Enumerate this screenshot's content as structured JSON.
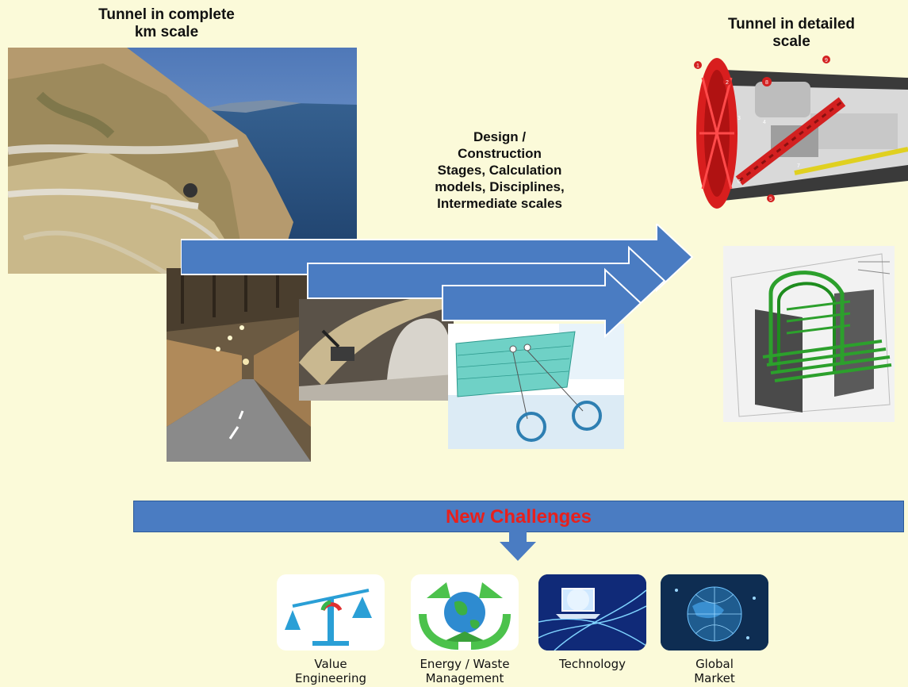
{
  "left_title": "Tunnel in complete\nkm scale",
  "right_title": "Tunnel in detailed\nscale",
  "center_text": "Design /\nConstruction\nStages, Calculation\nmodels, Disciplines,\nIntermediate scales",
  "banner_text": "New Challenges",
  "callout_numbers": [
    "1",
    "2",
    "3",
    "4",
    "5",
    "6",
    "7",
    "8",
    "9"
  ],
  "challenges": [
    {
      "label": "Value\nEngineering",
      "icon": "balance-scale-icon"
    },
    {
      "label": "Energy / Waste\nManagement",
      "icon": "recycle-globe-icon"
    },
    {
      "label": "Technology",
      "icon": "laptop-network-icon"
    },
    {
      "label": "Global\nMarket",
      "icon": "globe-network-icon"
    }
  ],
  "colors": {
    "background": "#fbfad9",
    "arrow": "#4a7cc2",
    "banner_text": "#e8201c"
  }
}
